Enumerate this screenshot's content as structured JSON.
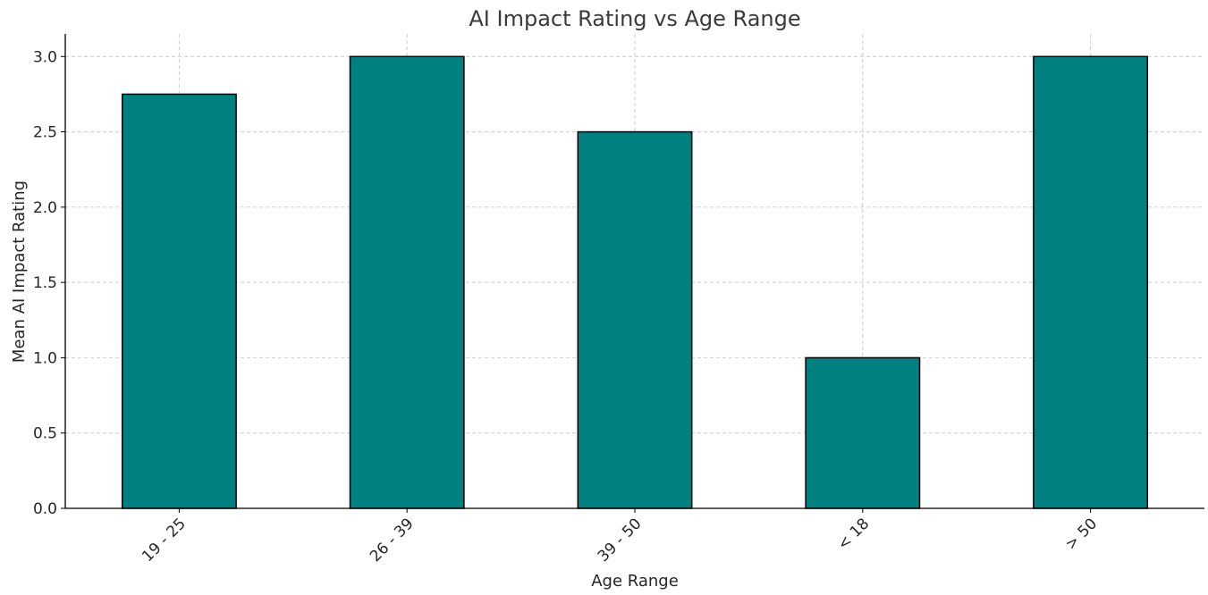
{
  "chart_data": {
    "type": "bar",
    "title": "AI Impact Rating vs Age Range",
    "xlabel": "Age Range",
    "ylabel": "Mean AI Impact Rating",
    "categories": [
      "19 - 25",
      "26 - 39",
      "39 - 50",
      "< 18",
      "> 50"
    ],
    "values": [
      2.75,
      3.0,
      2.5,
      1.0,
      3.0
    ],
    "ylim": [
      0,
      3.15
    ],
    "yticks": [
      0.0,
      0.5,
      1.0,
      1.5,
      2.0,
      2.5,
      3.0
    ],
    "ytick_labels": [
      "0.0",
      "0.5",
      "1.0",
      "1.5",
      "2.0",
      "2.5",
      "3.0"
    ],
    "grid": true,
    "bar_color": "#008080",
    "edge_color": "#000000",
    "xtick_rotation_deg": 45
  }
}
